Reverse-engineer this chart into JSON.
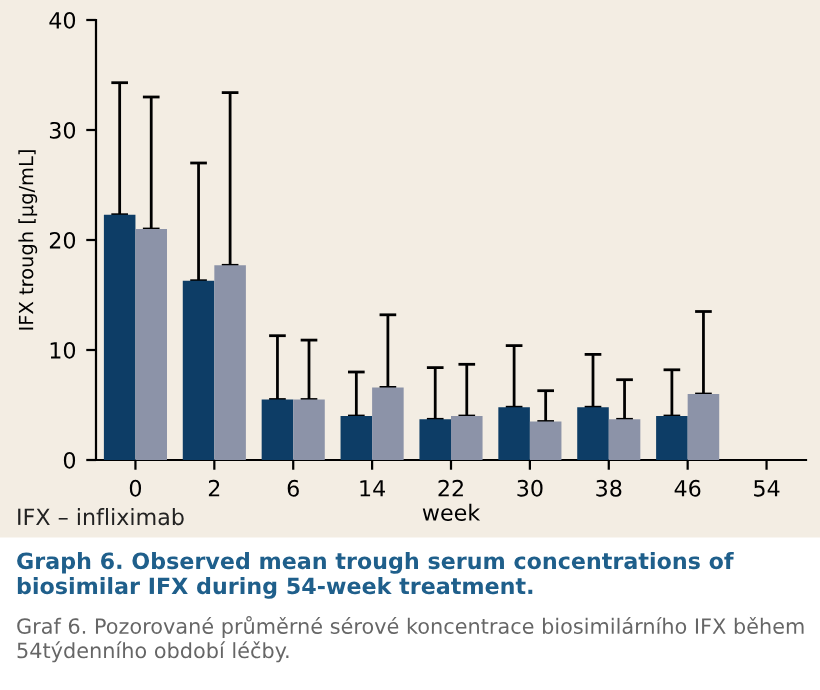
{
  "chart_data": {
    "type": "bar",
    "categories": [
      "0",
      "2",
      "6",
      "14",
      "22",
      "30",
      "38",
      "46",
      "54"
    ],
    "series": [
      {
        "color": "#0d3d66",
        "values": [
          22.3,
          16.3,
          5.5,
          4.0,
          3.7,
          4.8,
          4.8,
          4.0,
          null
        ],
        "errors": [
          [
            22.3,
            34.3
          ],
          [
            16.3,
            27.0
          ],
          [
            5.5,
            11.3
          ],
          [
            4.0,
            8.0
          ],
          [
            3.7,
            8.4
          ],
          [
            4.8,
            10.4
          ],
          [
            4.8,
            9.6
          ],
          [
            4.0,
            8.2
          ],
          null
        ]
      },
      {
        "color": "#8c93a8",
        "values": [
          21.0,
          17.7,
          5.5,
          6.6,
          4.0,
          3.5,
          3.7,
          6.0,
          null
        ],
        "errors": [
          [
            21.0,
            33.0
          ],
          [
            17.7,
            33.4
          ],
          [
            5.5,
            10.9
          ],
          [
            6.6,
            13.2
          ],
          [
            4.0,
            8.7
          ],
          [
            3.5,
            6.3
          ],
          [
            3.7,
            7.3
          ],
          [
            6.0,
            13.5
          ],
          null
        ]
      }
    ],
    "xlabel": "week",
    "ylabel": "IFX trough [µg/mL]",
    "ylim": [
      0,
      40
    ],
    "yticks": [
      0,
      10,
      20,
      30,
      40
    ],
    "grid": false,
    "legend": false,
    "annotations": [
      "IFX – infliximab",
      "Graph 6. Observed mean trough serum concentrations of biosimilar IFX during 54-week treatment.",
      "Graf 6. Pozorované průměrné sérové koncentrace biosimilárního IFX během 54týdenního období léčby."
    ]
  }
}
